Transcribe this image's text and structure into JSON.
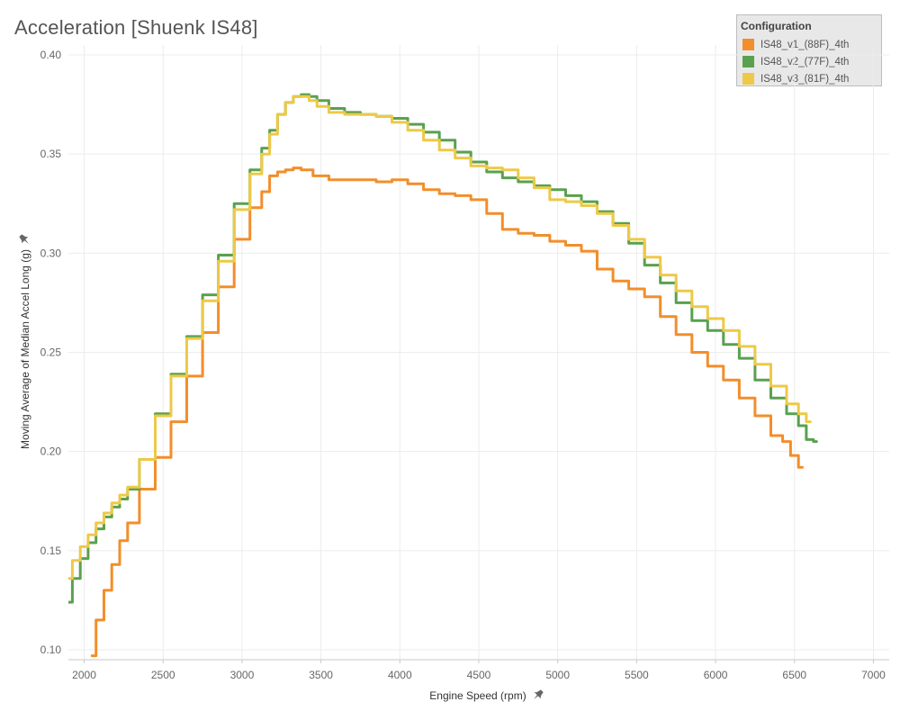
{
  "chart_data": {
    "type": "line",
    "title": "Acceleration [Shuenk IS48]",
    "xlabel": "Engine Speed (rpm)",
    "ylabel": "Moving Average of Median Accel Long (g)",
    "pin_icon": "pin-icon",
    "xlim": [
      1900,
      7100
    ],
    "ylim": [
      0.095,
      0.405
    ],
    "xticks": [
      "2000",
      "2500",
      "3000",
      "3500",
      "4000",
      "4500",
      "5000",
      "5500",
      "6000",
      "6500",
      "7000"
    ],
    "yticks": [
      "0.10",
      "0.15",
      "0.20",
      "0.25",
      "0.30",
      "0.35",
      "0.40"
    ],
    "grid": true,
    "legend_title": "Configuration",
    "legend_position": "top-right",
    "series": [
      {
        "name": "IS48_v1_(88F)_4th",
        "color": "#f28e2b",
        "x": [
          2050,
          2100,
          2150,
          2200,
          2250,
          2300,
          2400,
          2500,
          2600,
          2700,
          2800,
          2900,
          3000,
          3100,
          3150,
          3200,
          3250,
          3300,
          3350,
          3400,
          3500,
          3600,
          3700,
          3800,
          3900,
          4000,
          4100,
          4200,
          4300,
          4400,
          4500,
          4600,
          4700,
          4800,
          4900,
          5000,
          5100,
          5200,
          5300,
          5400,
          5500,
          5600,
          5700,
          5800,
          5900,
          6000,
          6100,
          6200,
          6300,
          6400,
          6450,
          6500,
          6550
        ],
        "y": [
          0.097,
          0.115,
          0.13,
          0.143,
          0.155,
          0.164,
          0.181,
          0.197,
          0.215,
          0.238,
          0.26,
          0.283,
          0.307,
          0.323,
          0.331,
          0.339,
          0.341,
          0.342,
          0.343,
          0.342,
          0.339,
          0.337,
          0.337,
          0.337,
          0.336,
          0.337,
          0.335,
          0.332,
          0.33,
          0.329,
          0.327,
          0.32,
          0.312,
          0.31,
          0.309,
          0.306,
          0.304,
          0.301,
          0.292,
          0.286,
          0.282,
          0.278,
          0.268,
          0.259,
          0.25,
          0.243,
          0.236,
          0.227,
          0.218,
          0.208,
          0.205,
          0.198,
          0.192
        ]
      },
      {
        "name": "IS48_v2_(77F)_4th",
        "color": "#59a14f",
        "x": [
          1900,
          1950,
          2000,
          2050,
          2100,
          2150,
          2200,
          2250,
          2300,
          2400,
          2500,
          2600,
          2700,
          2800,
          2900,
          3000,
          3100,
          3150,
          3200,
          3250,
          3300,
          3350,
          3400,
          3450,
          3500,
          3600,
          3700,
          3800,
          3900,
          4000,
          4100,
          4200,
          4300,
          4400,
          4500,
          4600,
          4700,
          4800,
          4900,
          5000,
          5100,
          5200,
          5300,
          5400,
          5500,
          5600,
          5700,
          5800,
          5900,
          6000,
          6100,
          6200,
          6300,
          6400,
          6500,
          6550,
          6600,
          6640
        ],
        "y": [
          0.124,
          0.136,
          0.146,
          0.154,
          0.161,
          0.167,
          0.172,
          0.176,
          0.181,
          0.196,
          0.219,
          0.239,
          0.258,
          0.279,
          0.299,
          0.325,
          0.342,
          0.353,
          0.362,
          0.37,
          0.376,
          0.379,
          0.38,
          0.379,
          0.377,
          0.373,
          0.371,
          0.37,
          0.369,
          0.368,
          0.365,
          0.361,
          0.357,
          0.351,
          0.346,
          0.341,
          0.338,
          0.336,
          0.334,
          0.332,
          0.329,
          0.326,
          0.321,
          0.315,
          0.305,
          0.294,
          0.285,
          0.275,
          0.266,
          0.261,
          0.254,
          0.247,
          0.236,
          0.227,
          0.219,
          0.213,
          0.206,
          0.205
        ]
      },
      {
        "name": "IS48_v3_(81F)_4th",
        "color": "#edc948",
        "x": [
          1900,
          1950,
          2000,
          2050,
          2100,
          2150,
          2200,
          2250,
          2300,
          2400,
          2500,
          2600,
          2700,
          2800,
          2900,
          3000,
          3100,
          3150,
          3200,
          3250,
          3300,
          3350,
          3400,
          3450,
          3500,
          3600,
          3700,
          3800,
          3900,
          4000,
          4100,
          4200,
          4300,
          4400,
          4500,
          4600,
          4700,
          4800,
          4900,
          5000,
          5100,
          5200,
          5300,
          5400,
          5500,
          5600,
          5700,
          5800,
          5900,
          6000,
          6100,
          6200,
          6300,
          6400,
          6500,
          6550,
          6600
        ],
        "y": [
          0.136,
          0.145,
          0.152,
          0.158,
          0.164,
          0.169,
          0.174,
          0.178,
          0.182,
          0.196,
          0.218,
          0.238,
          0.257,
          0.276,
          0.296,
          0.322,
          0.34,
          0.35,
          0.36,
          0.37,
          0.376,
          0.379,
          0.379,
          0.377,
          0.374,
          0.371,
          0.37,
          0.37,
          0.369,
          0.366,
          0.362,
          0.357,
          0.352,
          0.348,
          0.344,
          0.343,
          0.342,
          0.338,
          0.333,
          0.327,
          0.326,
          0.324,
          0.32,
          0.314,
          0.307,
          0.298,
          0.289,
          0.281,
          0.273,
          0.267,
          0.261,
          0.253,
          0.244,
          0.233,
          0.224,
          0.219,
          0.215
        ]
      }
    ]
  }
}
